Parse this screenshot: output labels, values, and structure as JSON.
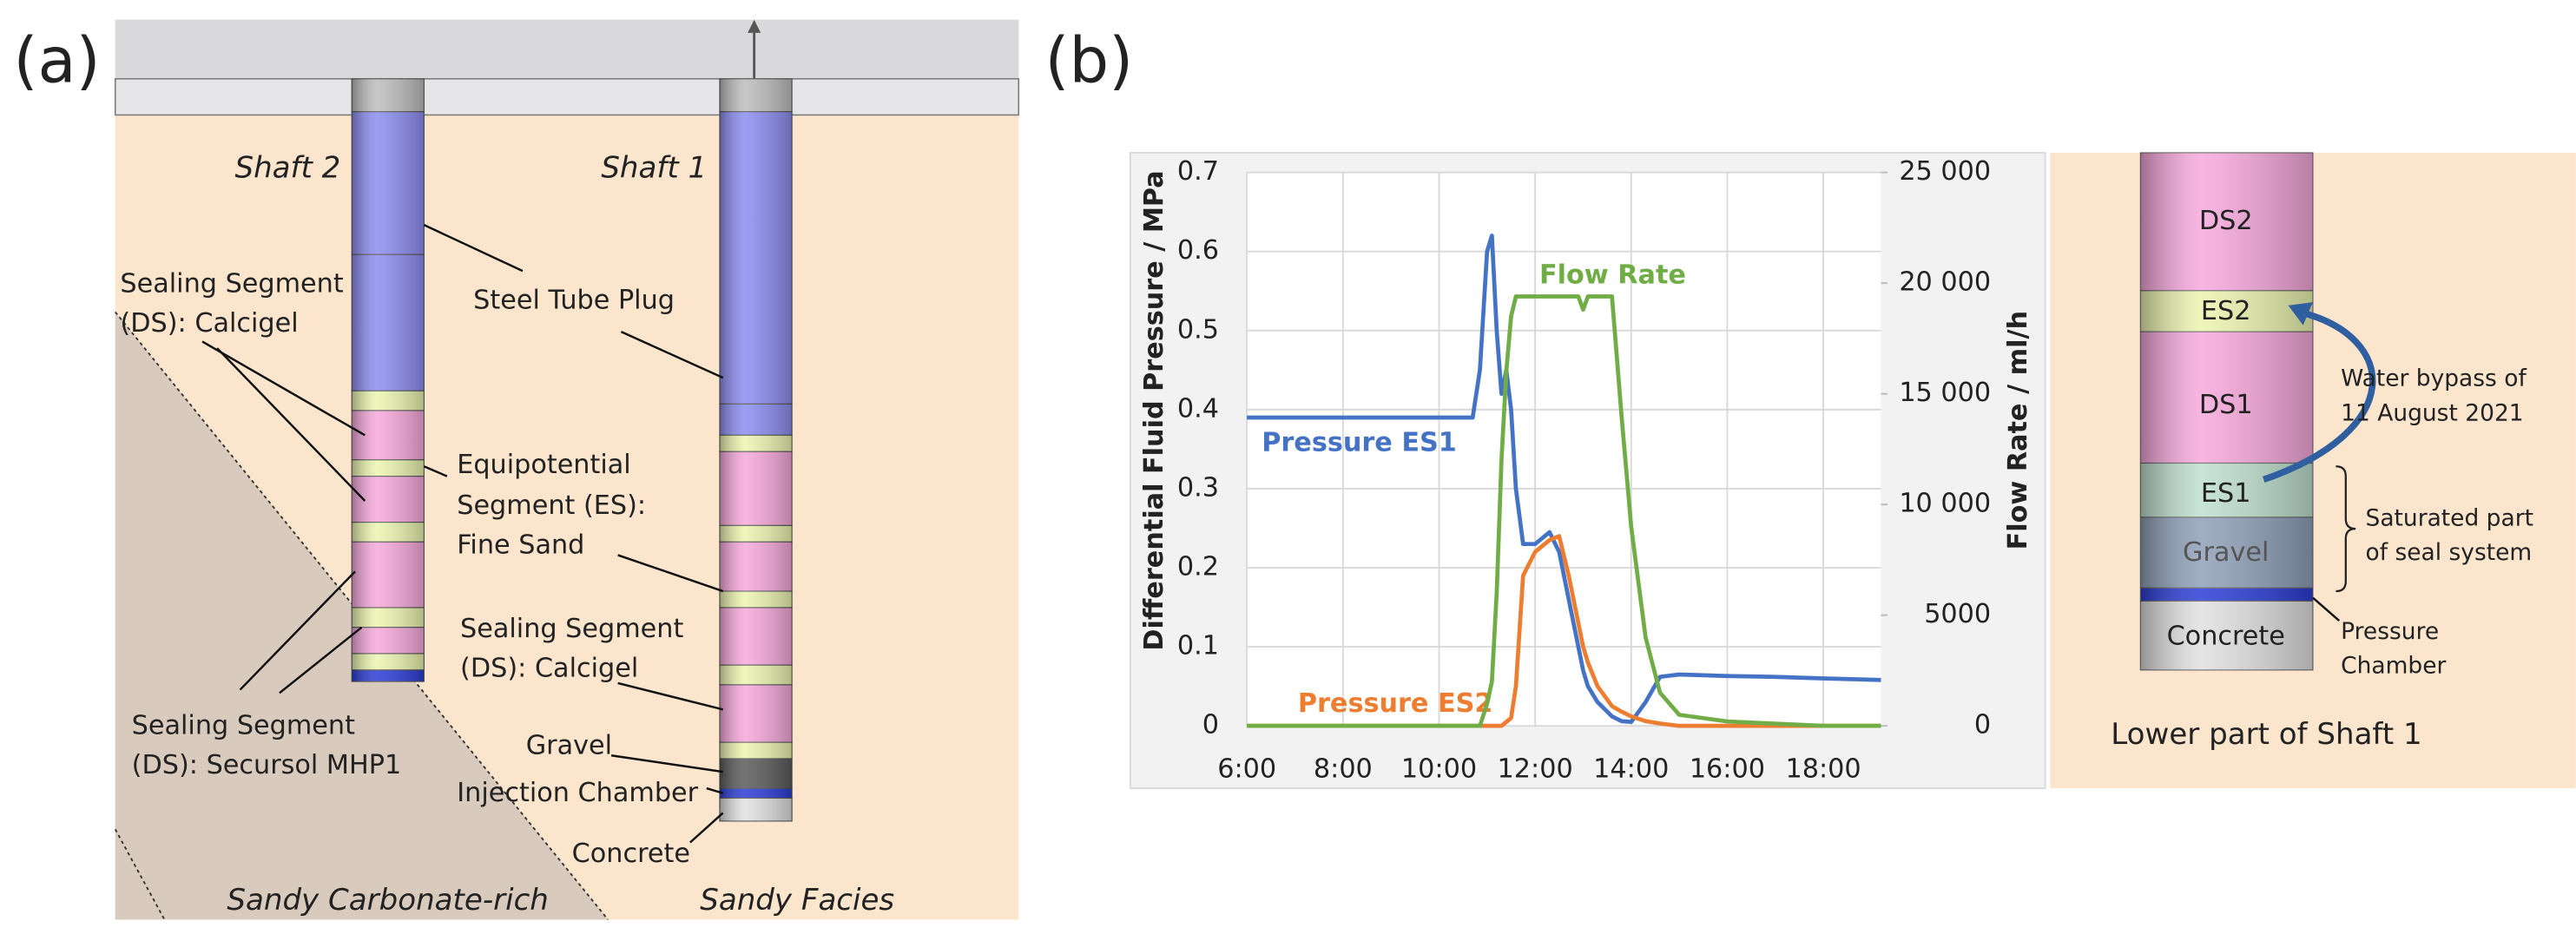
{
  "panel_labels": [
    "(a)",
    "(b)"
  ],
  "diagram_a": {
    "shaft_2": "Shaft 2",
    "shaft_1": "Shaft 1",
    "sealing_calcigel_left": [
      "Sealing Segment",
      "(DS): Calcigel"
    ],
    "steel_tube_plug": "Steel Tube Plug",
    "equipotential": [
      "Equipotential",
      "Segment (ES):",
      "Fine Sand"
    ],
    "sealing_calcigel_right": [
      "Sealing Segment",
      "(DS): Calcigel"
    ],
    "gravel": "Gravel",
    "injection_chamber": "Injection Chamber",
    "concrete": "Concrete",
    "sealing_secursol": [
      "Sealing Segment",
      "(DS): Secursol MHP1"
    ],
    "sandy_carbonate": "Sandy Carbonate-rich",
    "sandy_facies": "Sandy Facies"
  },
  "chart_data": {
    "type": "line",
    "y_label": "Differential Fluid Pressure / MPa",
    "y2_label": "Flow Rate / ml/h",
    "x": [
      6,
      10.7,
      10.85,
      11.0,
      11.1,
      11.2,
      11.3,
      11.4,
      11.5,
      11.6,
      11.75,
      12.0,
      12.3,
      12.5,
      12.7,
      12.9,
      13.0,
      13.1,
      13.3,
      13.6,
      13.8,
      14.0,
      14.3,
      14.6,
      15.0,
      16.0,
      17.0,
      18.0,
      19.2
    ],
    "series": [
      {
        "name": "Pressure ES1",
        "color": "#4472c4",
        "values": [
          0.39,
          0.39,
          0.45,
          0.6,
          0.62,
          0.5,
          0.42,
          0.45,
          0.4,
          0.3,
          0.23,
          0.23,
          0.245,
          0.22,
          0.16,
          0.1,
          0.07,
          0.05,
          0.03,
          0.012,
          0.006,
          0.005,
          0.03,
          0.062,
          0.065,
          0.063,
          0.062,
          0.06,
          0.058
        ]
      },
      {
        "name": "Pressure ES2",
        "color": "#ed7d31",
        "values": [
          0,
          0,
          0,
          0,
          0,
          0,
          0,
          0.005,
          0.01,
          0.05,
          0.19,
          0.22,
          0.235,
          0.24,
          0.19,
          0.13,
          0.1,
          0.08,
          0.05,
          0.025,
          0.018,
          0.012,
          0.006,
          0.003,
          0,
          0,
          0,
          0,
          0
        ]
      },
      {
        "name": "Flow Rate",
        "color": "#70ad47",
        "axis": "y2",
        "values": [
          0,
          0,
          0,
          1000,
          2000,
          6000,
          12000,
          16000,
          18500,
          19400,
          19400,
          19400,
          19400,
          19400,
          19400,
          19400,
          18800,
          19400,
          19400,
          19400,
          14000,
          9000,
          4000,
          1500,
          500,
          200,
          100,
          0,
          0
        ]
      }
    ],
    "xlim": [
      6,
      19.2
    ],
    "xticks": [
      {
        "value": 6,
        "label": "6:00"
      },
      {
        "value": 8,
        "label": "8:00"
      },
      {
        "value": 10,
        "label": "10:00"
      },
      {
        "value": 12,
        "label": "12:00"
      },
      {
        "value": 14,
        "label": "14:00"
      },
      {
        "value": 16,
        "label": "16:00"
      },
      {
        "value": 18,
        "label": "18:00"
      }
    ],
    "ylim": [
      0,
      0.7
    ],
    "yticks": [
      0,
      0.1,
      0.2,
      0.3,
      0.4,
      0.5,
      0.6,
      0.7
    ],
    "y2lim": [
      0,
      25000
    ],
    "y2ticks": [
      0,
      5000,
      {
        "value": 10000,
        "label": "10 000"
      },
      {
        "value": 15000,
        "label": "15 000"
      },
      {
        "value": 20000,
        "label": "20 000"
      },
      {
        "value": 25000,
        "label": "25 000"
      }
    ],
    "grid": true
  },
  "diagram_b": {
    "segments": [
      "DS2",
      "ES2",
      "DS1",
      "ES1",
      "Gravel",
      "Concrete"
    ],
    "water_bypass": [
      "Water bypass of",
      "11 August 2021"
    ],
    "saturated": [
      "Saturated part",
      "of seal system"
    ],
    "pressure_chamber": [
      "Pressure",
      "Chamber"
    ],
    "caption": "Lower part of Shaft 1"
  }
}
